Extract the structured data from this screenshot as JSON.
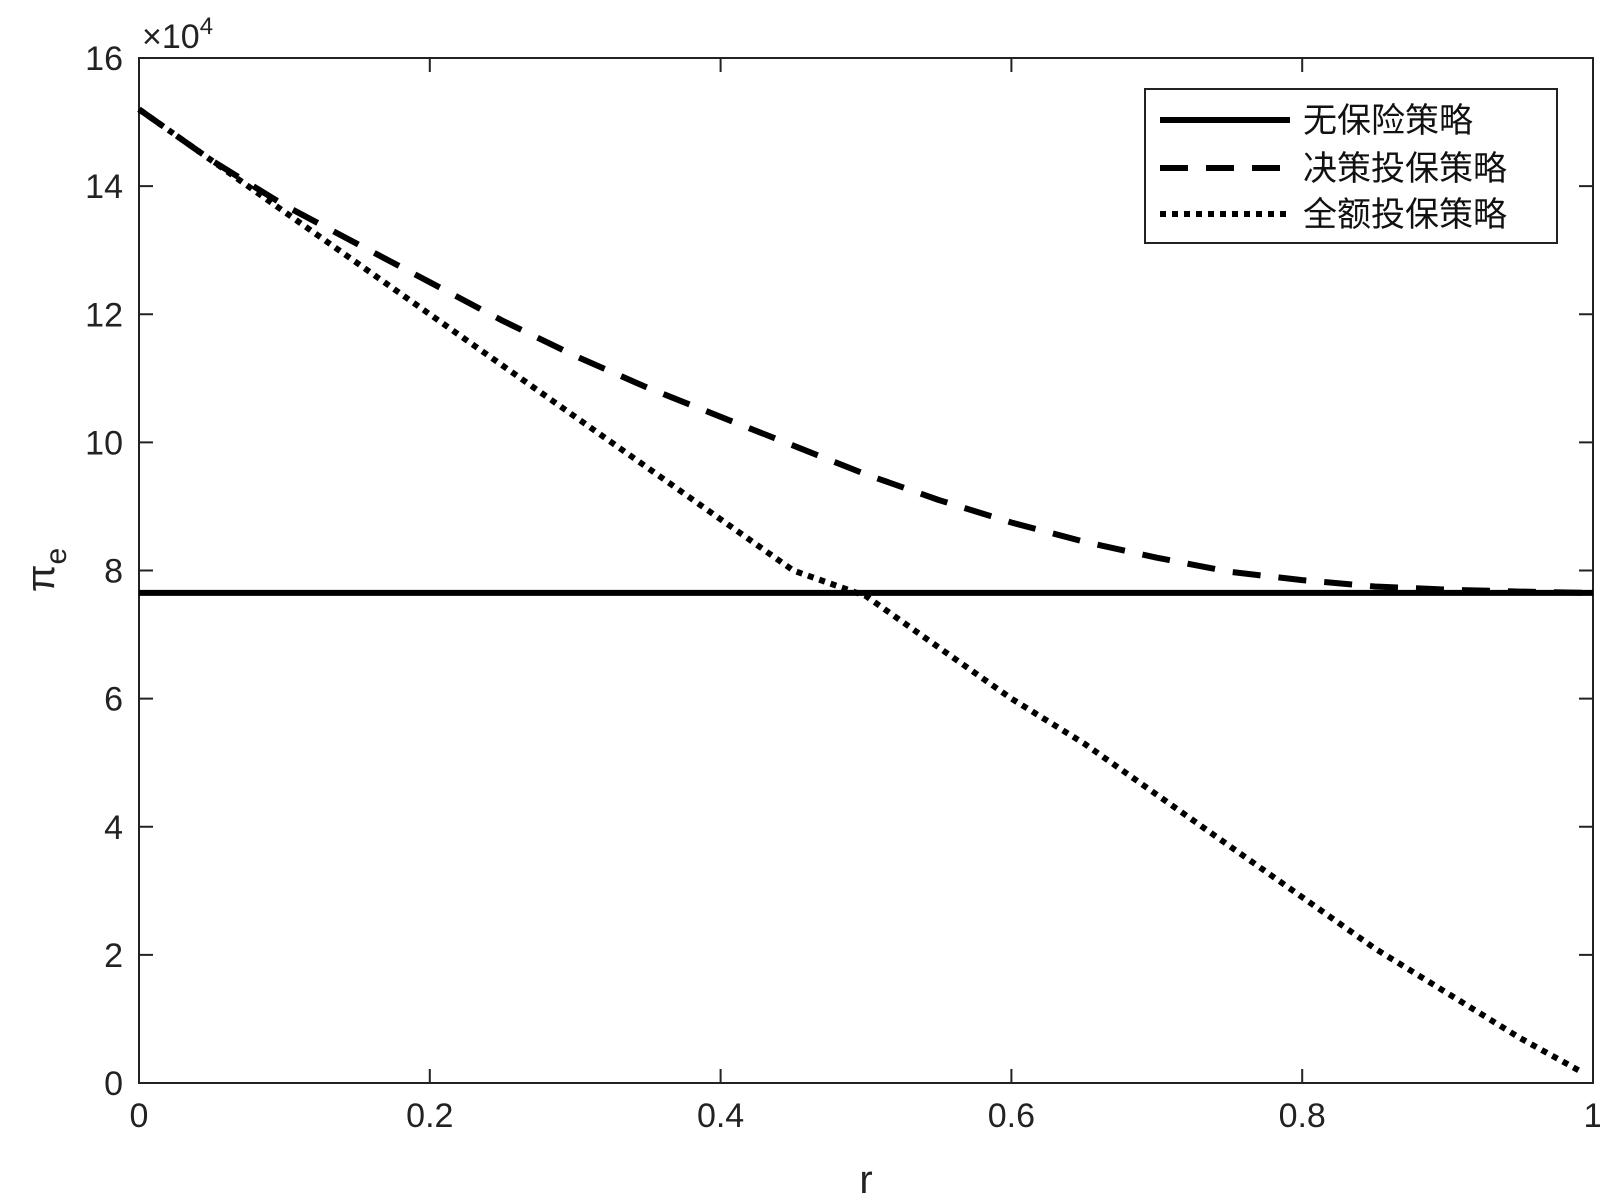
{
  "chart_data": {
    "type": "line",
    "xlabel": "r",
    "ylabel": "π",
    "ylabel_sub": "e",
    "exponent_label": "×10",
    "exponent_power": "4",
    "xlim": [
      0,
      1
    ],
    "ylim": [
      0,
      16
    ],
    "x_ticks": [
      0,
      0.2,
      0.4,
      0.6,
      0.8,
      1
    ],
    "x_tick_labels": [
      "0",
      "0.2",
      "0.4",
      "0.6",
      "0.8",
      "1"
    ],
    "y_ticks": [
      0,
      2,
      4,
      6,
      8,
      10,
      12,
      14,
      16
    ],
    "y_tick_labels": [
      "0",
      "2",
      "4",
      "6",
      "8",
      "10",
      "12",
      "14",
      "16"
    ],
    "grid": false,
    "legend_position": "top-right",
    "series": [
      {
        "name": "无保险策略",
        "style": "solid",
        "x": [
          0,
          1
        ],
        "y": [
          7.65,
          7.65
        ]
      },
      {
        "name": "决策投保策略",
        "style": "dashed",
        "x": [
          0,
          0.05,
          0.1,
          0.15,
          0.2,
          0.25,
          0.3,
          0.35,
          0.4,
          0.45,
          0.5,
          0.55,
          0.6,
          0.65,
          0.7,
          0.75,
          0.8,
          0.85,
          0.9,
          0.95,
          1.0
        ],
        "y": [
          15.2,
          14.4,
          13.7,
          13.1,
          12.5,
          11.9,
          11.35,
          10.85,
          10.4,
          9.95,
          9.5,
          9.1,
          8.75,
          8.45,
          8.2,
          7.98,
          7.85,
          7.75,
          7.7,
          7.67,
          7.65
        ]
      },
      {
        "name": "全额投保策略",
        "style": "dotted",
        "x": [
          0,
          0.05,
          0.1,
          0.15,
          0.2,
          0.25,
          0.3,
          0.35,
          0.4,
          0.45,
          0.5,
          0.55,
          0.6,
          0.65,
          0.7,
          0.75,
          0.8,
          0.85,
          0.9,
          0.95,
          0.99
        ],
        "y": [
          15.2,
          14.4,
          13.6,
          12.8,
          12.0,
          11.2,
          10.4,
          9.6,
          8.8,
          8.0,
          7.6,
          6.8,
          6.0,
          5.3,
          4.5,
          3.7,
          2.9,
          2.1,
          1.4,
          0.7,
          0.2
        ]
      }
    ]
  }
}
